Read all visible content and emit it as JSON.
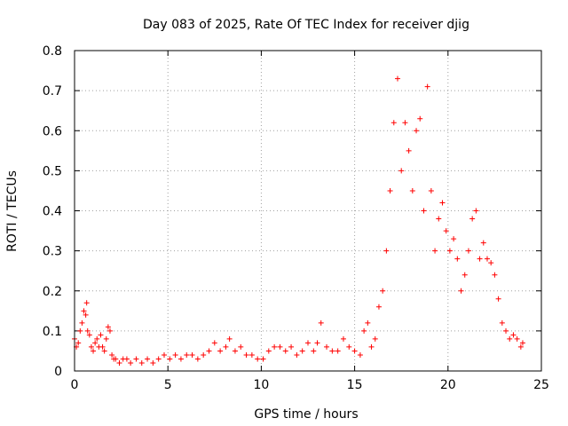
{
  "chart_data": {
    "type": "scatter",
    "title": "Day 083 of 2025, Rate Of TEC Index for receiver djig",
    "xlabel": "GPS time / hours",
    "ylabel": "ROTI / TECUs",
    "xlim": [
      0,
      25
    ],
    "ylim": [
      0,
      0.8
    ],
    "x_ticks": [
      "0",
      "5",
      "10",
      "15",
      "20",
      "25"
    ],
    "y_ticks": [
      "0",
      "0.1",
      "0.2",
      "0.3",
      "0.4",
      "0.5",
      "0.6",
      "0.7",
      "0.8"
    ],
    "grid": true,
    "marker": "plus",
    "color": "#ff0000",
    "series": [
      {
        "x": [
          0.0,
          0.1,
          0.2,
          0.3,
          0.4,
          0.5,
          0.6,
          0.65,
          0.7,
          0.8,
          0.9,
          1.0,
          1.1,
          1.2,
          1.3,
          1.4,
          1.5,
          1.6,
          1.7,
          1.8,
          1.9,
          2.0,
          2.1,
          2.2,
          2.4,
          2.6,
          2.8,
          3.0,
          3.3,
          3.6,
          3.9,
          4.2,
          4.5,
          4.8,
          5.1,
          5.4,
          5.7,
          6.0,
          6.3,
          6.6,
          6.9,
          7.2,
          7.5,
          7.8,
          8.1,
          8.3,
          8.6,
          8.9,
          9.2,
          9.5,
          9.8,
          10.1,
          10.4,
          10.7,
          11.0,
          11.3,
          11.6,
          11.9,
          12.2,
          12.5,
          12.8,
          13.0,
          13.2,
          13.5,
          13.8,
          14.1,
          14.4,
          14.7,
          15.0,
          15.3,
          15.5,
          15.7,
          15.9,
          16.1,
          16.3,
          16.5,
          16.7,
          16.9,
          17.1,
          17.3,
          17.5,
          17.7,
          17.9,
          18.1,
          18.3,
          18.5,
          18.7,
          18.9,
          19.1,
          19.3,
          19.5,
          19.7,
          19.9,
          20.1,
          20.3,
          20.5,
          20.7,
          20.9,
          21.1,
          21.3,
          21.5,
          21.7,
          21.9,
          22.1,
          22.3,
          22.5,
          22.7,
          22.9,
          23.1,
          23.3,
          23.5,
          23.7,
          23.9,
          24.0
        ],
        "y": [
          0.08,
          0.06,
          0.07,
          0.1,
          0.12,
          0.15,
          0.14,
          0.17,
          0.1,
          0.09,
          0.06,
          0.05,
          0.07,
          0.08,
          0.06,
          0.09,
          0.06,
          0.05,
          0.08,
          0.11,
          0.1,
          0.04,
          0.03,
          0.03,
          0.02,
          0.03,
          0.03,
          0.02,
          0.03,
          0.02,
          0.03,
          0.02,
          0.03,
          0.04,
          0.03,
          0.04,
          0.03,
          0.04,
          0.04,
          0.03,
          0.04,
          0.05,
          0.07,
          0.05,
          0.06,
          0.08,
          0.05,
          0.06,
          0.04,
          0.04,
          0.03,
          0.03,
          0.05,
          0.06,
          0.06,
          0.05,
          0.06,
          0.04,
          0.05,
          0.07,
          0.05,
          0.07,
          0.12,
          0.06,
          0.05,
          0.05,
          0.08,
          0.06,
          0.05,
          0.04,
          0.1,
          0.12,
          0.06,
          0.08,
          0.16,
          0.2,
          0.3,
          0.45,
          0.62,
          0.73,
          0.5,
          0.62,
          0.55,
          0.45,
          0.6,
          0.63,
          0.4,
          0.71,
          0.45,
          0.3,
          0.38,
          0.42,
          0.35,
          0.3,
          0.33,
          0.28,
          0.2,
          0.24,
          0.3,
          0.38,
          0.4,
          0.28,
          0.32,
          0.28,
          0.27,
          0.24,
          0.18,
          0.12,
          0.1,
          0.08,
          0.09,
          0.08,
          0.06,
          0.07
        ]
      }
    ]
  }
}
